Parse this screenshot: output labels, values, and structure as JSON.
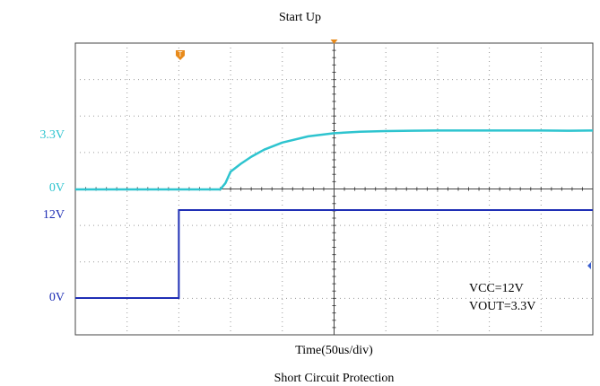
{
  "title": "Start Up",
  "xlabel": "Time(50us/div)",
  "next_title": "Short Circuit Protection",
  "annotations": [
    "VCC=12V",
    "VOUT=3.3V"
  ],
  "colors": {
    "vout": "#2ec4cf",
    "vcc": "#1f2fb5",
    "marker": "#e88a1a",
    "grid": "#9a9a9a",
    "frame": "#444444"
  },
  "chart_data": {
    "type": "line",
    "title": "Start Up",
    "xlabel": "Time(50us/div)",
    "x_divisions": 10,
    "grid": true,
    "trigger_marker": "T",
    "panels": [
      {
        "name": "VOUT",
        "y_labels": [
          "3.3V",
          "0V"
        ],
        "y_values": [
          3.3,
          0
        ],
        "series": [
          {
            "x": [
              0,
              4.0,
              5.6,
              5.8,
              6.0,
              6.4,
              6.8,
              7.3,
              8.0,
              9.0,
              10.0,
              11.0,
              12.0,
              13.0,
              14.0,
              15.0,
              16.0,
              17.0,
              18.0,
              19.0,
              20.0
            ],
            "y": [
              0,
              0,
              0,
              0.35,
              1.0,
              1.45,
              1.85,
              2.25,
              2.65,
              3.0,
              3.18,
              3.26,
              3.3,
              3.32,
              3.33,
              3.33,
              3.33,
              3.33,
              3.33,
              3.32,
              3.33
            ]
          }
        ]
      },
      {
        "name": "VCC",
        "y_labels": [
          "12V",
          "0V"
        ],
        "y_values": [
          12,
          0
        ],
        "series": [
          {
            "x": [
              0,
              4.0,
              4.0,
              20.0
            ],
            "y": [
              0,
              0,
              12,
              12
            ]
          }
        ]
      }
    ]
  }
}
